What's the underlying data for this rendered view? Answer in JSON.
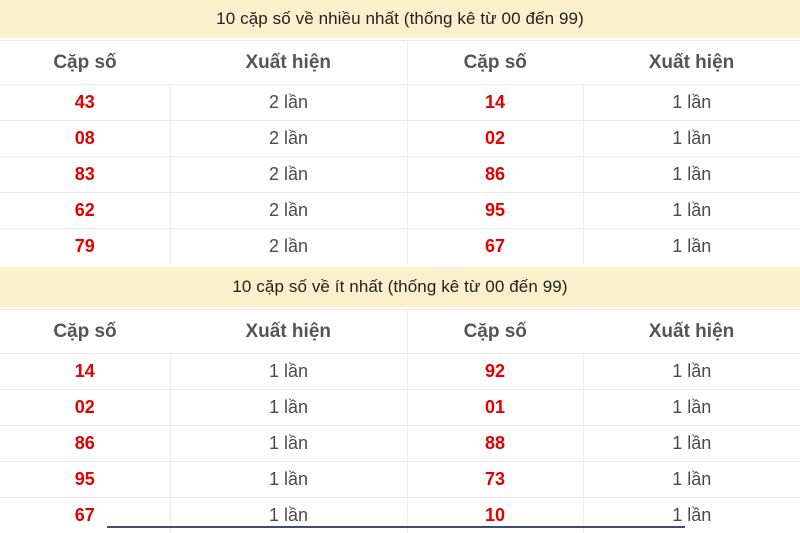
{
  "colors": {
    "title_bar_bg": "#faf0cb",
    "pair_number": "#e30000",
    "count_text": "#4a4a4a",
    "header_text": "#555555",
    "row_border": "#e9e9e9",
    "next_section_edge": "#3f4e78"
  },
  "sections": [
    {
      "title": "10 cặp số về nhiều nhất (thống kê từ 00 đến 99)",
      "columns": [
        "Cặp số",
        "Xuất hiện",
        "Cặp số",
        "Xuất hiện"
      ],
      "rows": [
        [
          "43",
          "2 lần",
          "14",
          "1 lần"
        ],
        [
          "08",
          "2 lần",
          "02",
          "1 lần"
        ],
        [
          "83",
          "2 lần",
          "86",
          "1 lần"
        ],
        [
          "62",
          "2 lần",
          "95",
          "1 lần"
        ],
        [
          "79",
          "2 lần",
          "67",
          "1 lần"
        ]
      ]
    },
    {
      "title": "10 cặp số về ít nhất (thống kê từ 00 đến 99)",
      "columns": [
        "Cặp số",
        "Xuất hiện",
        "Cặp số",
        "Xuất hiện"
      ],
      "rows": [
        [
          "14",
          "1 lần",
          "92",
          "1 lần"
        ],
        [
          "02",
          "1 lần",
          "01",
          "1 lần"
        ],
        [
          "86",
          "1 lần",
          "88",
          "1 lần"
        ],
        [
          "95",
          "1 lần",
          "73",
          "1 lần"
        ],
        [
          "67",
          "1 lần",
          "10",
          "1 lần"
        ]
      ]
    }
  ]
}
